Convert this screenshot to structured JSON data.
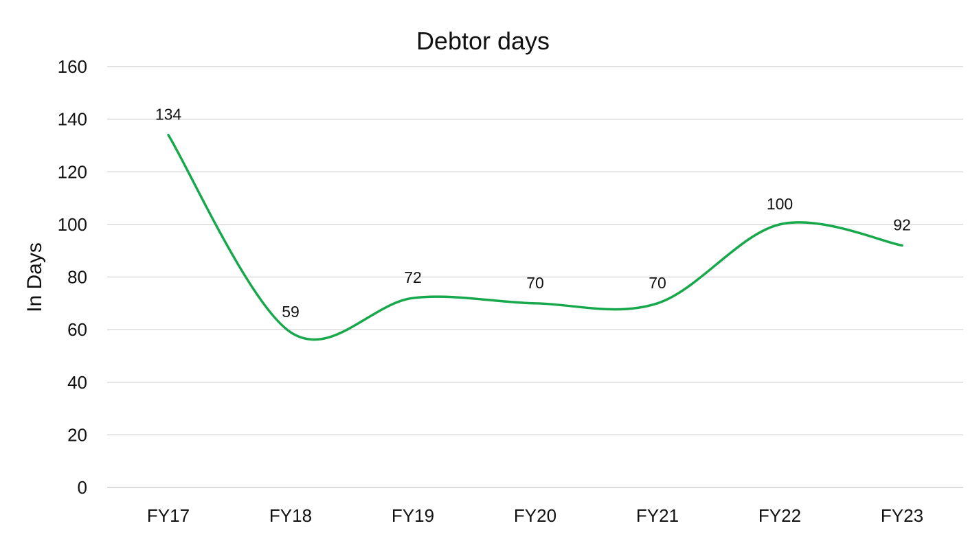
{
  "chart_data": {
    "type": "line",
    "title": "Debtor days",
    "xlabel": "",
    "ylabel": "In Days",
    "categories": [
      "FY17",
      "FY18",
      "FY19",
      "FY20",
      "FY21",
      "FY22",
      "FY23"
    ],
    "series": [
      {
        "values": [
          134,
          59,
          72,
          70,
          70,
          100,
          92
        ],
        "color": "#17a84b"
      }
    ],
    "ylim": [
      0,
      160
    ],
    "yticks": [
      0,
      20,
      40,
      60,
      80,
      100,
      120,
      140,
      160
    ],
    "grid": true,
    "smooth": true,
    "data_labels": true
  }
}
